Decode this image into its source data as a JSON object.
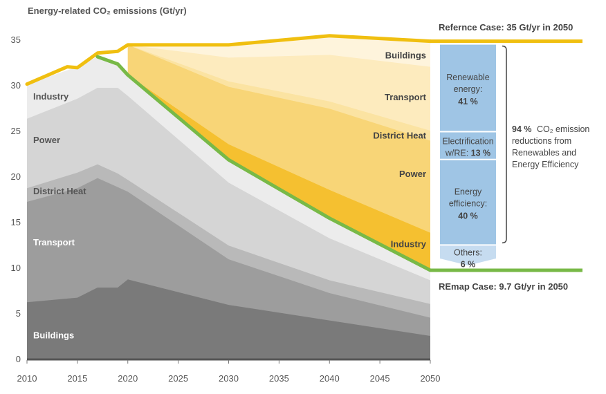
{
  "chart_data": {
    "type": "area",
    "title": "Energy-related CO₂ emissions (Gt/yr)",
    "xlim": [
      2010,
      2050
    ],
    "ylim": [
      0,
      35
    ],
    "x_ticks": [
      2010,
      2015,
      2020,
      2025,
      2030,
      2035,
      2040,
      2045,
      2050
    ],
    "y_ticks": [
      0,
      5,
      10,
      15,
      20,
      25,
      30,
      35
    ],
    "grid": false,
    "remap_cumulative": {
      "x": [
        2010,
        2015,
        2017,
        2019,
        2020,
        2030,
        2040,
        2050
      ],
      "layers": [
        {
          "name": "Industry",
          "values": [
            6.2,
            6.7,
            7.8,
            7.8,
            8.7,
            5.9,
            4.2,
            2.5
          ],
          "color": "#7a7a7a"
        },
        {
          "name": "Power",
          "values": [
            17.2,
            18.7,
            19.8,
            18.8,
            18.3,
            10.9,
            7.2,
            4.5
          ],
          "color": "#9d9d9d"
        },
        {
          "name": "District Heat",
          "values": [
            18.7,
            20.4,
            21.3,
            20.3,
            19.6,
            12.4,
            8.6,
            6.0
          ],
          "color": "#b9b9b9"
        },
        {
          "name": "Transport",
          "values": [
            26.3,
            28.5,
            29.7,
            29.7,
            28.8,
            19.3,
            13.2,
            8.6
          ],
          "color": "#d5d5d5"
        },
        {
          "name": "Buildings",
          "values": [
            30.1,
            32.0,
            33.1,
            32.3,
            31.1,
            21.8,
            15.4,
            9.7
          ],
          "color": "#ececec"
        }
      ]
    },
    "reference_cumulative": {
      "x": [
        2020,
        2030,
        2040,
        2050
      ],
      "layers": [
        {
          "name": "Industry",
          "values": [
            31.1,
            23.5,
            18.5,
            13.8
          ],
          "color": "#f5c030"
        },
        {
          "name": "Power",
          "values": [
            34.4,
            29.8,
            27.4,
            23.9
          ],
          "color": "#f8d577"
        },
        {
          "name": "District Heat",
          "values": [
            34.4,
            30.4,
            28.2,
            25.0
          ],
          "color": "#fbe3a2"
        },
        {
          "name": "Transport",
          "values": [
            34.4,
            33.0,
            33.3,
            32.0
          ],
          "color": "#fdebbe"
        },
        {
          "name": "Buildings",
          "values": [
            34.4,
            34.4,
            35.4,
            34.8
          ],
          "color": "#fef4dc"
        }
      ]
    },
    "reference_line": {
      "name": "Reference Case",
      "x": [
        2010,
        2014,
        2015,
        2017,
        2019,
        2020,
        2030,
        2040,
        2050
      ],
      "values": [
        30.1,
        32.0,
        31.9,
        33.5,
        33.7,
        34.4,
        34.4,
        35.4,
        34.8
      ],
      "color": "#f0bf10"
    },
    "remap_line": {
      "name": "REmap Case",
      "x": [
        2017,
        2019,
        2020,
        2030,
        2040,
        2050
      ],
      "values": [
        33.1,
        32.3,
        31.1,
        21.8,
        15.4,
        9.7
      ],
      "color": "#78b947"
    },
    "sector_labels": {
      "left": [
        "Buildings",
        "Transport",
        "District Heat",
        "Power",
        "Industry"
      ],
      "right": [
        "Buildings",
        "Transport",
        "District Heat",
        "Power",
        "Industry"
      ]
    },
    "reduction_breakdown": [
      {
        "line1": "Renewable",
        "line2": "energy:",
        "value": "41 %",
        "share": 41
      },
      {
        "line1": "Electrification",
        "line2": "w/RE:",
        "value": "13 %",
        "share": 13
      },
      {
        "line1": "Energy",
        "line2": "efficiency:",
        "value": "40 %",
        "share": 40
      },
      {
        "line1": "Others:",
        "line2": "",
        "value": "6 %",
        "share": 6
      }
    ],
    "breakdown_colors": {
      "main": "#9fc5e5",
      "others": "#c6dcf0"
    },
    "reference_label": "Refernce Case: 35 Gt/yr in 2050",
    "remap_label": "REmap Case: 9.7 Gt/yr in 2050",
    "bracket_note": {
      "lead": "94 %",
      "lines": [
        "CO₂ emission",
        "reductions from",
        "Renewables and",
        "Energy Efficiency"
      ]
    }
  }
}
